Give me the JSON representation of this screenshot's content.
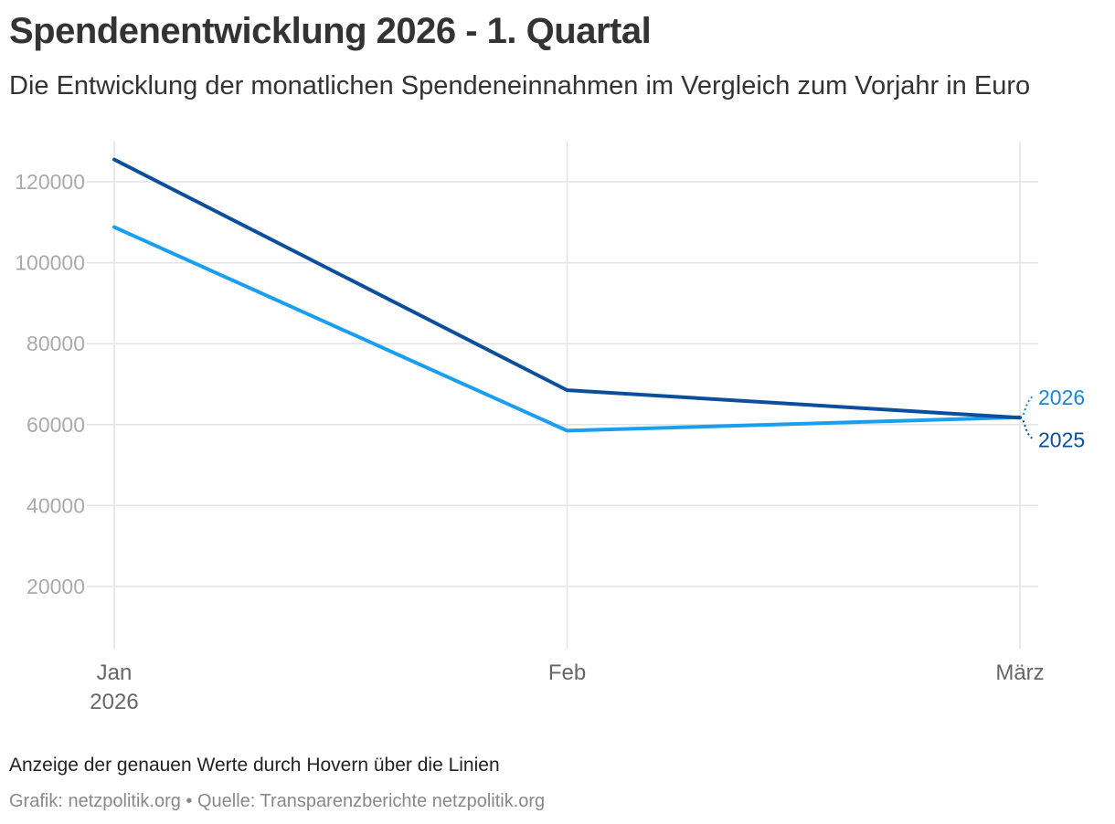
{
  "header": {
    "title": "Spendenentwicklung 2026 - 1. Quartal",
    "subtitle": "Die Entwicklung der monatlichen Spendeneinnahmen im Vergleich zum Vorjahr in Euro"
  },
  "footer": {
    "notes": "Anzeige der genauen Werte durch Hovern über die Linien",
    "source": "Grafik: netzpolitik.org • Quelle: Transparenzberichte netzpolitik.org"
  },
  "colors": {
    "series_2026": "#1a9ff0",
    "series_2025": "#0b4f9c",
    "grid": "#e3e3e3"
  },
  "chart_data": {
    "type": "line",
    "title": "Spendenentwicklung 2026 - 1. Quartal",
    "xlabel": "",
    "ylabel": "",
    "categories": [
      "Jan",
      "Feb",
      "März"
    ],
    "category_sublabels": [
      "2026",
      "",
      ""
    ],
    "ylim": [
      5000,
      130000
    ],
    "yticks": [
      20000,
      40000,
      60000,
      80000,
      100000,
      120000
    ],
    "ytick_labels": [
      "20000",
      "40000",
      "60000",
      "80000",
      "100000",
      "120000"
    ],
    "grid": true,
    "legend": "direct-labels-right",
    "series": [
      {
        "name": "2026",
        "values": [
          108800,
          58500,
          61800
        ]
      },
      {
        "name": "2025",
        "values": [
          125500,
          68500,
          61700
        ]
      }
    ]
  }
}
